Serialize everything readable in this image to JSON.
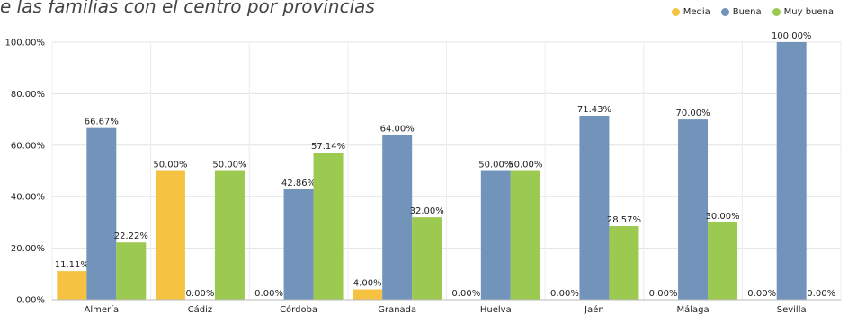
{
  "title_text": "e las familias con el centro por provincias",
  "legend": [
    {
      "label": "Media",
      "color": "#F5C242",
      "icon": "circle-icon"
    },
    {
      "label": "Buena",
      "color": "#7394BA",
      "icon": "circle-icon"
    },
    {
      "label": "Muy buena",
      "color": "#9CC950",
      "icon": "circle-icon"
    }
  ],
  "chart_data": {
    "type": "bar",
    "title": "e las familias con el centro por provincias",
    "categories": [
      "Almería",
      "Cádiz",
      "Córdoba",
      "Granada",
      "Huelva",
      "Jaén",
      "Málaga",
      "Sevilla"
    ],
    "series": [
      {
        "name": "Media",
        "color": "#F5C242",
        "values": [
          11.11,
          50.0,
          0.0,
          4.0,
          0.0,
          0.0,
          0.0,
          0.0
        ]
      },
      {
        "name": "Buena",
        "color": "#7394BA",
        "values": [
          66.67,
          0.0,
          42.86,
          64.0,
          50.0,
          71.43,
          70.0,
          100.0
        ]
      },
      {
        "name": "Muy buena",
        "color": "#9CC950",
        "values": [
          22.22,
          50.0,
          57.14,
          32.0,
          50.0,
          28.57,
          30.0,
          0.0
        ]
      }
    ],
    "y_ticks": [
      "0.00%",
      "20.00%",
      "40.00%",
      "60.00%",
      "80.00%",
      "100.00%"
    ],
    "ylim": [
      0,
      100
    ],
    "grid": true,
    "legend_position": "top-right"
  }
}
